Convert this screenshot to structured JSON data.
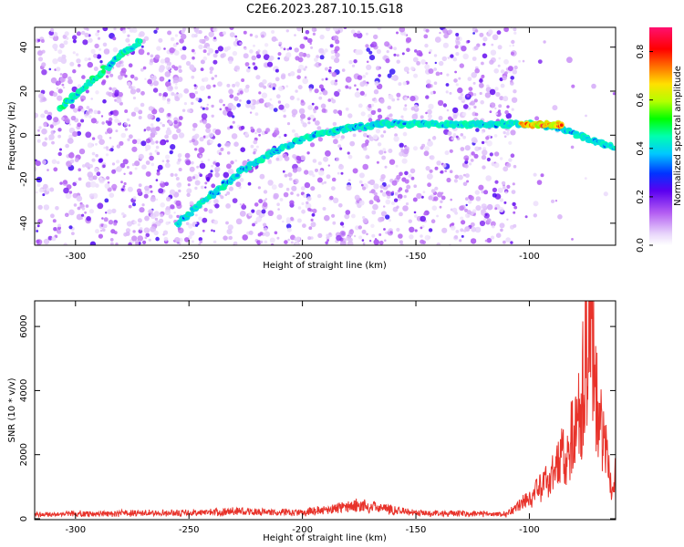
{
  "title": "C2E6.2023.287.10.15.G18",
  "colors": {
    "snr_line": "#e8322a",
    "axis": "#000000"
  },
  "chart_data": [
    {
      "type": "heatmap",
      "xlabel": "Height of straight line (km)",
      "ylabel": "Frequency (Hz)",
      "xlim": [
        -318,
        -62
      ],
      "ylim": [
        -50,
        49
      ],
      "xticks": [
        -300,
        -250,
        -200,
        -150,
        -100
      ],
      "yticks": [
        -40,
        -20,
        0,
        20,
        40
      ],
      "colorbar": {
        "label": "Normalized spectral amplitude",
        "range": [
          0.0,
          0.9
        ],
        "ticks": [
          0.0,
          0.2,
          0.4,
          0.6,
          0.8
        ],
        "colormap": "rainbow (white → violet → blue → cyan → green → yellow → red → magenta)"
      },
      "ridges": [
        {
          "name": "doppler-trace-left",
          "points": [
            [
              -307,
              12
            ],
            [
              -297,
              21
            ],
            [
              -287,
              30
            ],
            [
              -277,
              39
            ],
            [
              -271,
              43
            ]
          ],
          "amplitude": 0.45
        },
        {
          "name": "doppler-trace-main",
          "points": [
            [
              -255,
              -40
            ],
            [
              -240,
              -27
            ],
            [
              -225,
              -15
            ],
            [
              -210,
              -6
            ],
            [
              -195,
              0
            ],
            [
              -180,
              3
            ],
            [
              -165,
              5
            ],
            [
              -150,
              5
            ],
            [
              -130,
              5
            ],
            [
              -115,
              5
            ],
            [
              -100,
              5
            ],
            [
              -88,
              4
            ],
            [
              -78,
              0
            ],
            [
              -70,
              -3
            ],
            [
              -62,
              -6
            ]
          ],
          "amplitude": 0.4
        },
        {
          "name": "doppler-trace-peak",
          "points": [
            [
              -103,
              5
            ],
            [
              -95,
              5
            ],
            [
              -85,
              5
            ]
          ],
          "amplitude": 0.85
        }
      ]
    },
    {
      "type": "line",
      "xlabel": "Height of straight line (km)",
      "ylabel": "SNR (10 * v/v)",
      "xlim": [
        -318,
        -62
      ],
      "ylim": [
        0,
        6800
      ],
      "xticks": [
        -300,
        -250,
        -200,
        -150,
        -100
      ],
      "yticks": [
        0,
        2000,
        4000,
        6000
      ],
      "series": [
        {
          "key_points": [
            {
              "x": -318,
              "y": 150
            },
            {
              "x": -285,
              "y": 180
            },
            {
              "x": -250,
              "y": 200
            },
            {
              "x": -230,
              "y": 250
            },
            {
              "x": -200,
              "y": 200
            },
            {
              "x": -175,
              "y": 450
            },
            {
              "x": -150,
              "y": 200
            },
            {
              "x": -110,
              "y": 150
            },
            {
              "x": -102,
              "y": 600
            },
            {
              "x": -95,
              "y": 1000
            },
            {
              "x": -88,
              "y": 1800
            },
            {
              "x": -82,
              "y": 2500
            },
            {
              "x": -77,
              "y": 4000
            },
            {
              "x": -74,
              "y": 6800
            },
            {
              "x": -72,
              "y": 5600
            },
            {
              "x": -68,
              "y": 3000
            },
            {
              "x": -64,
              "y": 1000
            },
            {
              "x": -62,
              "y": 1400
            }
          ]
        }
      ]
    }
  ]
}
